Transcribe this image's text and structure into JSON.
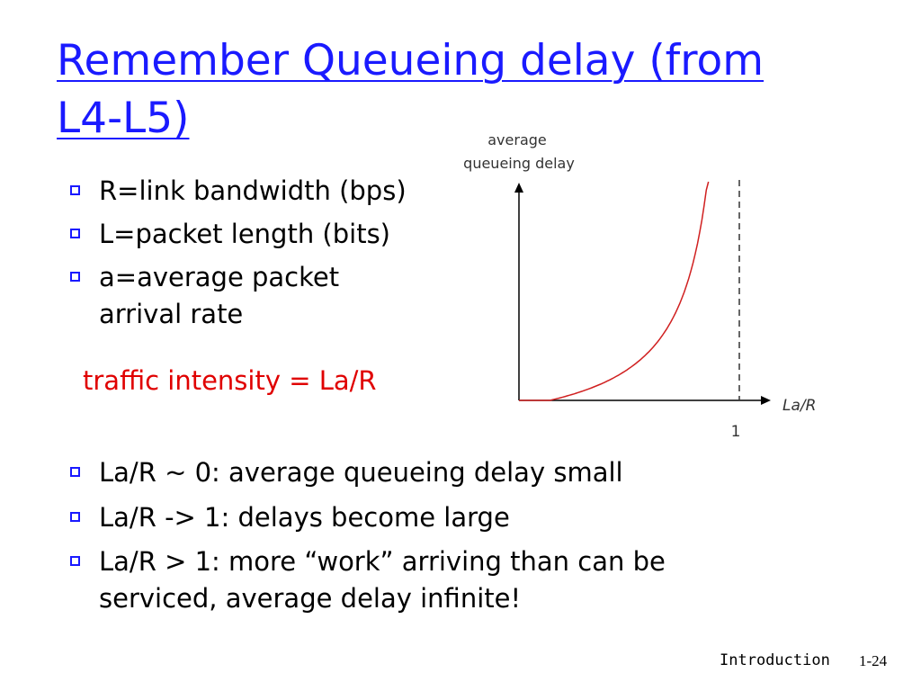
{
  "title_line1": "Remember Queueing delay (from",
  "title_line2": "L4-L5)",
  "bullets_top": [
    "R=link bandwidth (bps)",
    "L=packet length (bits)",
    "a=average packet",
    "arrival rate"
  ],
  "traffic_intensity": "traffic intensity = La/R",
  "bullets_bottom": [
    "La/R ~ 0: average queueing delay small",
    "La/R -> 1: delays become large",
    "La/R > 1: more “work” arriving than can be",
    "serviced, average delay infinite!"
  ],
  "footer": {
    "section": "Introduction",
    "page": "1-24"
  },
  "chart_data": {
    "type": "line",
    "title": "",
    "ylabel_line1": "average",
    "ylabel_line2": "queueing delay",
    "xlabel": "La/R",
    "x_tick": "1",
    "asymptote_x": 1,
    "curve_color": "#d02020",
    "series": [
      {
        "name": "queueing delay",
        "shape": "rises slowly from 0 then grows to infinity as La/R approaches 1"
      }
    ]
  }
}
